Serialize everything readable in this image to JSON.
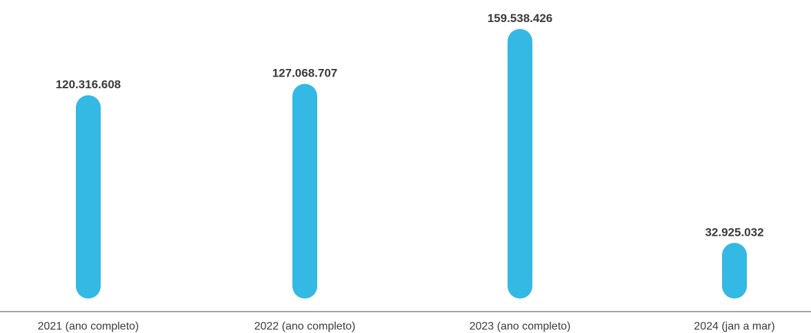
{
  "chart_data": {
    "type": "bar",
    "title": "",
    "xlabel": "",
    "ylabel": "",
    "categories": [
      "2021 (ano completo)",
      "2022 (ano completo)",
      "2023 (ano completo)",
      "2024 (jan a mar)"
    ],
    "values": [
      120316608,
      127068707,
      159538426,
      32925032
    ],
    "value_labels": [
      "120.316.608",
      "127.068.707",
      "159.538.426",
      "32.925.032"
    ],
    "grid": false,
    "legend": "none",
    "bar_color": "#34B8E4",
    "axis_color": "#6b6b6b"
  }
}
